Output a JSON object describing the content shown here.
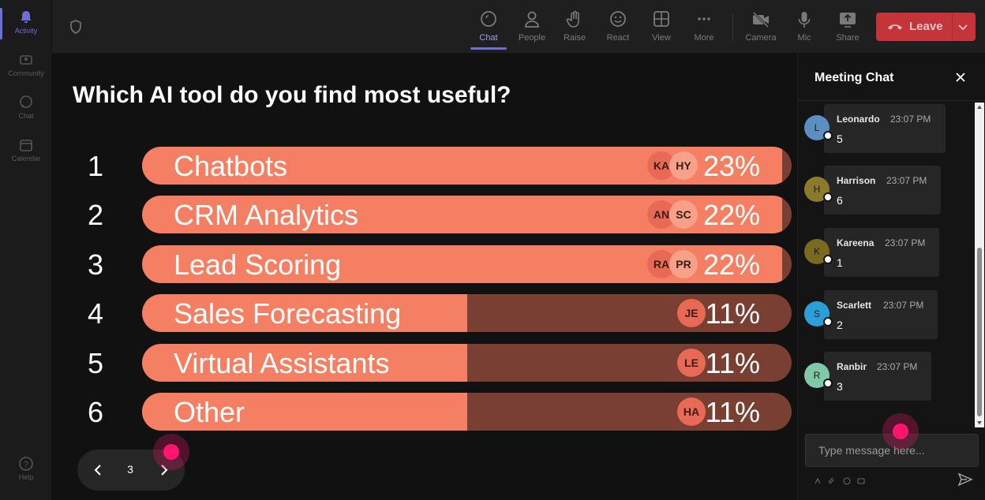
{
  "rail": {
    "items": [
      {
        "label": "Activity",
        "icon": "bell-icon",
        "active": true
      },
      {
        "label": "Community",
        "icon": "community-icon"
      },
      {
        "label": "Chat",
        "icon": "chat-icon"
      },
      {
        "label": "Calendar",
        "icon": "calendar-icon"
      }
    ],
    "help": "Help"
  },
  "toolbar": {
    "buttons": [
      {
        "label": "Chat",
        "icon": "chat-icon",
        "active": true
      },
      {
        "label": "People",
        "icon": "people-icon"
      },
      {
        "label": "Raise",
        "icon": "hand-icon"
      },
      {
        "label": "React",
        "icon": "smiley-icon"
      },
      {
        "label": "View",
        "icon": "grid-icon"
      },
      {
        "label": "More",
        "icon": "more-icon"
      },
      {
        "label": "Camera",
        "icon": "camera-off-icon"
      },
      {
        "label": "Mic",
        "icon": "mic-icon"
      },
      {
        "label": "Share",
        "icon": "share-icon"
      }
    ],
    "leave_label": "Leave",
    "leave_color": "#c4343b"
  },
  "poll": {
    "question": "Which AI tool do you find most useful?",
    "fill_color": "#f57f63",
    "track_color": "#7a3f33",
    "options": [
      {
        "rank": "1",
        "label": "Chatbots",
        "percent": "23%",
        "fraction": 0.985,
        "voters": [
          "KA",
          "HY"
        ]
      },
      {
        "rank": "2",
        "label": "CRM Analytics",
        "percent": "22%",
        "fraction": 0.985,
        "voters": [
          "AN",
          "SC"
        ]
      },
      {
        "rank": "3",
        "label": "Lead Scoring",
        "percent": "22%",
        "fraction": 0.985,
        "voters": [
          "RA",
          "PR"
        ]
      },
      {
        "rank": "4",
        "label": "Sales Forecasting",
        "percent": "11%",
        "fraction": 0.5,
        "voters": [
          "JE"
        ]
      },
      {
        "rank": "5",
        "label": "Virtual Assistants",
        "percent": "11%",
        "fraction": 0.5,
        "voters": [
          "LE"
        ]
      },
      {
        "rank": "6",
        "label": "Other",
        "percent": "11%",
        "fraction": 0.5,
        "voters": [
          "HA"
        ]
      }
    ]
  },
  "pager": {
    "page": "3"
  },
  "chat": {
    "title": "Meeting Chat",
    "messages": [
      {
        "initial": "L",
        "name": "Leonardo",
        "time": "23:07 PM",
        "text": "5",
        "color": "#5b8fbf"
      },
      {
        "initial": "H",
        "name": "Harrison",
        "time": "23:07 PM",
        "text": "6",
        "color": "#8a7a2a"
      },
      {
        "initial": "K",
        "name": "Kareena",
        "time": "23:07 PM",
        "text": "1",
        "color": "#7a6a1f"
      },
      {
        "initial": "S",
        "name": "Scarlett",
        "time": "23:07 PM",
        "text": "2",
        "color": "#2a9fd8"
      },
      {
        "initial": "R",
        "name": "Ranbir",
        "time": "23:07 PM",
        "text": "3",
        "color": "#7fc9a6"
      }
    ],
    "compose_placeholder": "Type message here..."
  }
}
